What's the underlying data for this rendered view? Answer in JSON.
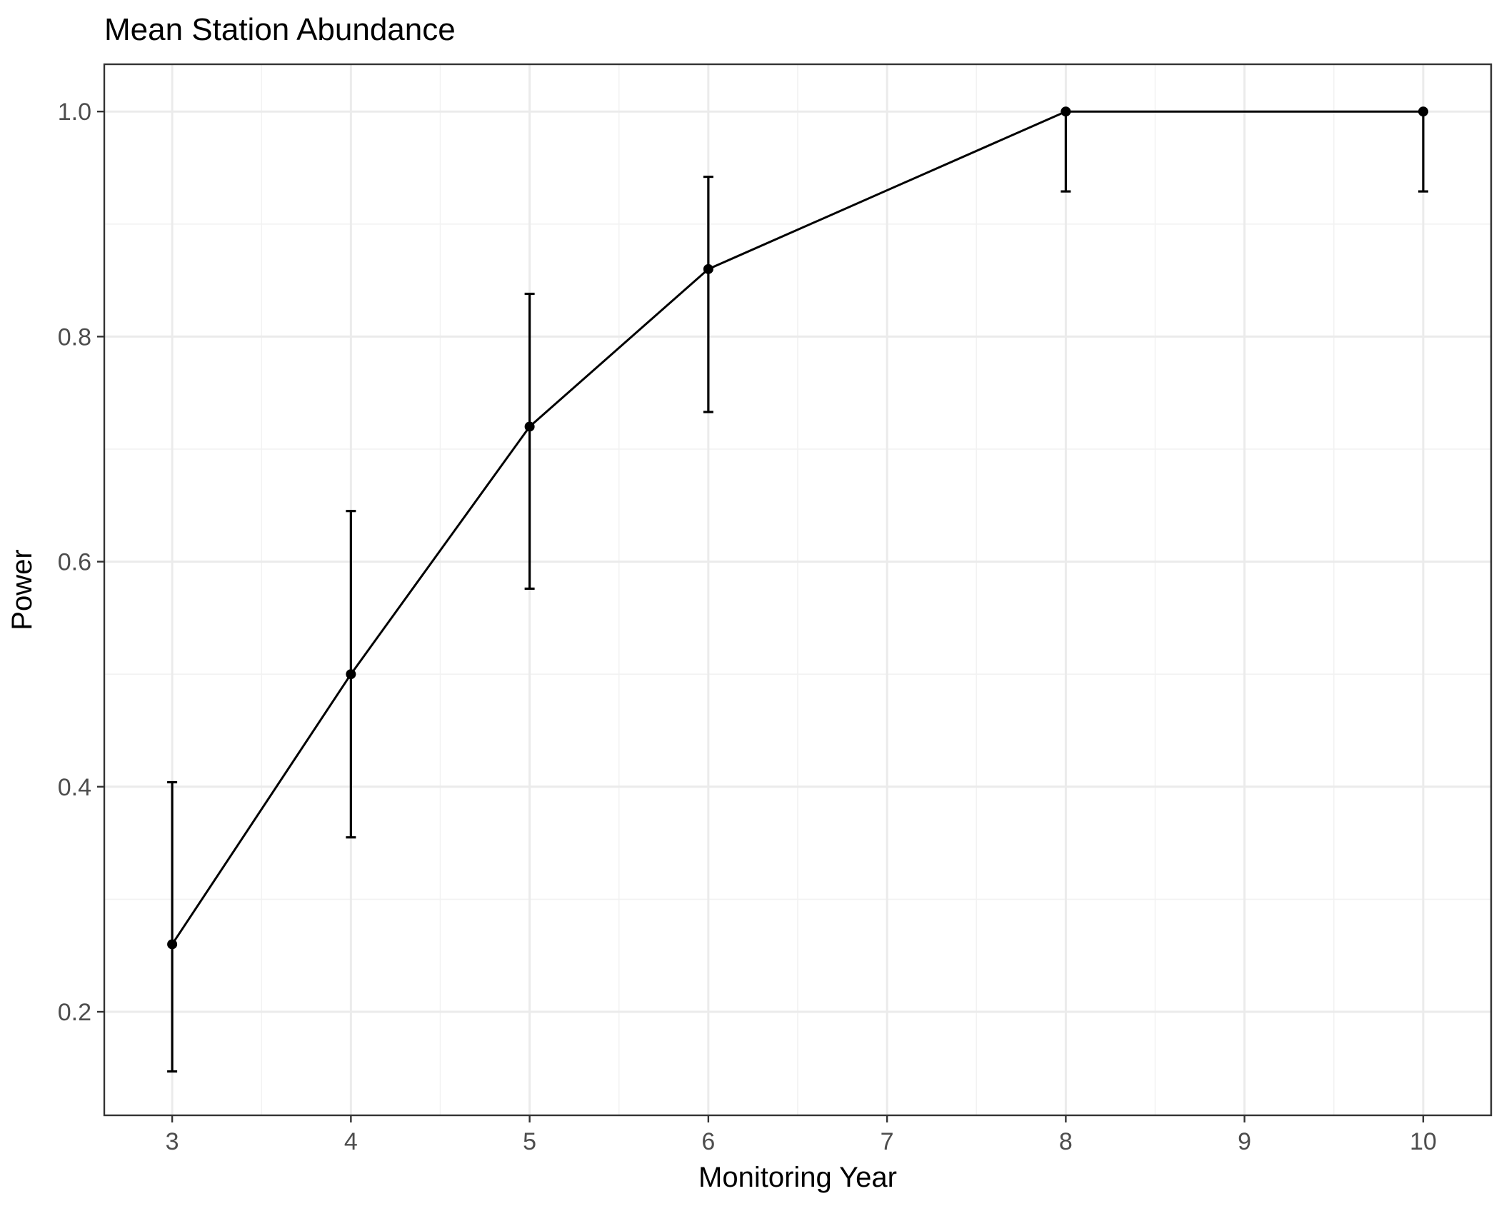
{
  "chart_data": {
    "type": "line",
    "title": "Mean Station Abundance",
    "xlabel": "Monitoring Year",
    "ylabel": "Power",
    "xlim": [
      2.62,
      10.38
    ],
    "ylim": [
      0.108,
      1.042
    ],
    "x_ticks": [
      3,
      4,
      5,
      6,
      7,
      8,
      9,
      10
    ],
    "x_tick_labels": [
      "3",
      "4",
      "5",
      "6",
      "7",
      "8",
      "9",
      "10"
    ],
    "y_ticks": [
      0.2,
      0.4,
      0.6,
      0.8,
      1.0
    ],
    "y_tick_labels": [
      "0.2",
      "0.4",
      "0.6",
      "0.8",
      "1.0"
    ],
    "grid": true,
    "legend": "none",
    "colors": {
      "series": "#000000",
      "grid": "#ebebeb",
      "panel_border": "#333333"
    },
    "series": [
      {
        "x": [
          3,
          4,
          5,
          6,
          8,
          10
        ],
        "y": [
          0.26,
          0.5,
          0.72,
          0.86,
          1.0,
          1.0
        ],
        "lower": [
          0.147,
          0.355,
          0.576,
          0.733,
          0.929,
          0.929
        ],
        "upper": [
          0.404,
          0.645,
          0.838,
          0.942,
          1.0,
          1.0
        ]
      }
    ]
  }
}
